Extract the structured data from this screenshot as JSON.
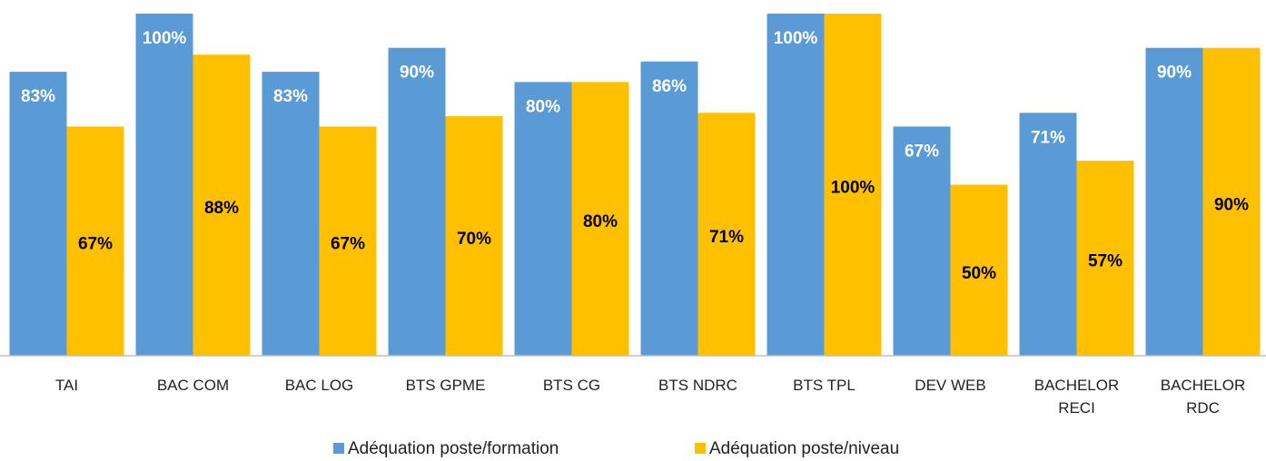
{
  "chart_data": {
    "type": "bar",
    "categories": [
      "TAI",
      "BAC COM",
      "BAC LOG",
      "BTS GPME",
      "BTS CG",
      "BTS NDRC",
      "BTS TPL",
      "DEV WEB",
      "BACHELOR RECI",
      "BACHELOR RDC"
    ],
    "series": [
      {
        "name": "Adéquation poste/formation",
        "color": "#5b9bd5",
        "values": [
          83,
          100,
          83,
          90,
          80,
          86,
          100,
          67,
          71,
          90
        ],
        "value_labels": [
          "83%",
          "100%",
          "83%",
          "90%",
          "80%",
          "86%",
          "100%",
          "67%",
          "71%",
          "90%"
        ]
      },
      {
        "name": "Adéquation poste/niveau",
        "color": "#ffc000",
        "values": [
          67,
          88,
          67,
          70,
          80,
          71,
          100,
          50,
          57,
          90
        ],
        "value_labels": [
          "67%",
          "88%",
          "67%",
          "70%",
          "80%",
          "71%",
          "100%",
          "50%",
          "57%",
          "90%"
        ]
      }
    ],
    "ylim": [
      0,
      100
    ],
    "legend": "bottom"
  }
}
